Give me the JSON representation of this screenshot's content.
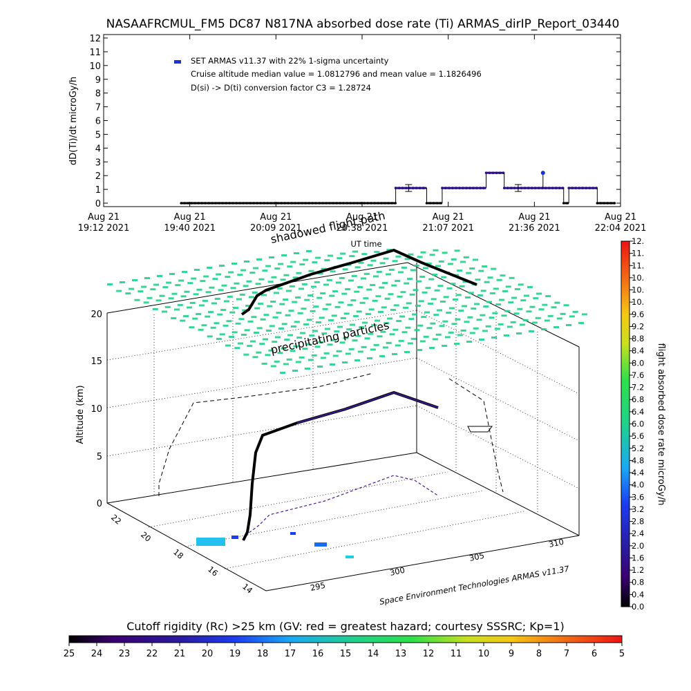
{
  "title": "NASAAFRCMUL_FM5 DC87 N817NA absorbed dose rate (Ti) ARMAS_dirIP_Report_03440",
  "chart_data": [
    {
      "type": "scatter",
      "ylabel": "dD(Ti)/dt microGy/h",
      "xlabel": "UT time",
      "ylim": [
        0,
        12
      ],
      "yticks": [
        "0",
        "1",
        "2",
        "3",
        "4",
        "5",
        "6",
        "7",
        "8",
        "9",
        "10",
        "11",
        "12"
      ],
      "xticks": [
        {
          "line1": "Aug 21",
          "line2": "19:12 2021"
        },
        {
          "line1": "Aug 21",
          "line2": "19:40 2021"
        },
        {
          "line1": "Aug 21",
          "line2": "20:09 2021"
        },
        {
          "line1": "Aug 21",
          "line2": "20:38 2021"
        },
        {
          "line1": "Aug 21",
          "line2": "21:07 2021"
        },
        {
          "line1": "Aug 21",
          "line2": "21:36 2021"
        },
        {
          "line1": "Aug 21",
          "line2": "22:04 2021"
        }
      ],
      "legend": {
        "series_label": "SET ARMAS v11.37 with 22% 1-sigma uncertainty",
        "line2": "Cruise altitude median value = 1.0812796 and mean value = 1.1826496",
        "line3": "D(si) -> D(ti) conversion factor C3 = 1.28724",
        "placement": "top-left"
      },
      "series": [
        {
          "name": "SET ARMAS v11.37 with 22% 1-sigma uncertainty",
          "segments": [
            {
              "t_start_frac": 0.15,
              "t_end_frac": 0.565,
              "value": 0.0
            },
            {
              "t_start_frac": 0.565,
              "t_end_frac": 0.625,
              "value": 1.1
            },
            {
              "t_start_frac": 0.625,
              "t_end_frac": 0.655,
              "value": 0.0
            },
            {
              "t_start_frac": 0.655,
              "t_end_frac": 0.74,
              "value": 1.1
            },
            {
              "t_start_frac": 0.74,
              "t_end_frac": 0.775,
              "value": 2.2
            },
            {
              "t_start_frac": 0.775,
              "t_end_frac": 0.89,
              "value": 1.1
            },
            {
              "t_start_frac": 0.89,
              "t_end_frac": 0.9,
              "value": 0.0
            },
            {
              "t_start_frac": 0.9,
              "t_end_frac": 0.955,
              "value": 1.1
            },
            {
              "t_start_frac": 0.955,
              "t_end_frac": 0.99,
              "value": 0.0
            }
          ],
          "spikes": [
            {
              "t_frac": 0.85,
              "value": 2.2
            }
          ],
          "error_bars": [
            {
              "t_frac": 0.59,
              "value": 1.1,
              "err": 0.25
            },
            {
              "t_frac": 0.802,
              "value": 1.1,
              "err": 0.25
            }
          ]
        }
      ]
    },
    {
      "type": "scatter",
      "ylabel": "Altitude (km)",
      "yticks": [
        "0",
        "5",
        "10",
        "15",
        "20"
      ],
      "ylim": [
        0,
        20
      ],
      "lat_ticks": [
        "22",
        "20",
        "18",
        "16",
        "14"
      ],
      "lon_ticks": [
        "295",
        "300",
        "305",
        "310"
      ],
      "labels": {
        "shadowed_path": "shadowed flight path",
        "precipitating": "precipitating particles",
        "credit": "Space Environment Technologies ARMAS v11.37"
      },
      "flight_altitude_km": [
        0.5,
        3,
        6,
        7,
        7.3,
        8.5,
        10,
        11.5,
        11.8,
        10.2
      ],
      "cruise_altitude_km": 11.5
    }
  ],
  "colorbar_right": {
    "label": "flight absorbed dose rate microGy/h",
    "ticks": [
      "0.0",
      "0.4",
      "0.8",
      "1.2",
      "1.6",
      "2.0",
      "2.4",
      "2.8",
      "3.2",
      "3.6",
      "4.0",
      "4.4",
      "4.8",
      "5.2",
      "5.6",
      "6.0",
      "6.4",
      "6.8",
      "7.2",
      "7.6",
      "8.0",
      "8.4",
      "8.8",
      "9.2",
      "9.6",
      "10.",
      "10.",
      "10.",
      "11.",
      "11.",
      "12."
    ]
  },
  "colorbar_bottom": {
    "label": "Cutoff rigidity (Rc) >25 km (GV: red = greatest hazard; courtesy SSSRC; Kp=1)",
    "ticks": [
      "25",
      "24",
      "23",
      "22",
      "21",
      "20",
      "19",
      "18",
      "17",
      "16",
      "15",
      "14",
      "13",
      "12",
      "11",
      "10",
      "9",
      "8",
      "7",
      "6",
      "5"
    ]
  },
  "colors": {
    "data_points": "#2b0a8a",
    "legend_marker": "#1e2fd6",
    "particles": "#1fd28a"
  }
}
